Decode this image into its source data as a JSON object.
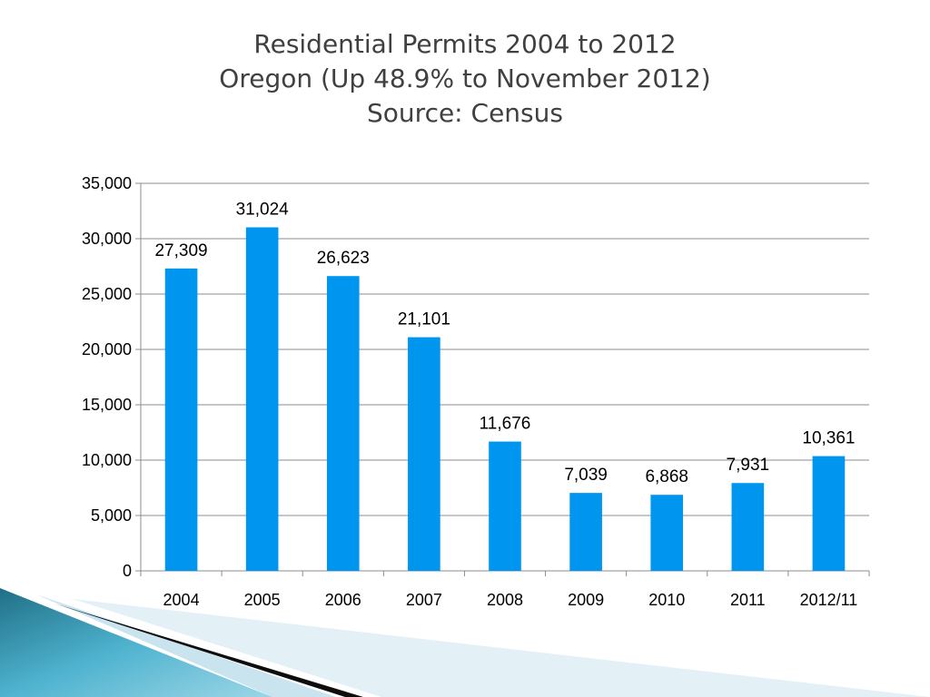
{
  "slide": {
    "title_lines": [
      "Residential Permits 2004 to 2012",
      "Oregon (Up 48.9% to November 2012)",
      "Source: Census"
    ]
  },
  "chart_data": {
    "type": "bar",
    "categories": [
      "2004",
      "2005",
      "2006",
      "2007",
      "2008",
      "2009",
      "2010",
      "2011",
      "2012/11"
    ],
    "values": [
      27309,
      31024,
      26623,
      21101,
      11676,
      7039,
      6868,
      7931,
      10361
    ],
    "value_labels": [
      "27,309",
      "31,024",
      "26,623",
      "21,101",
      "11,676",
      "7,039",
      "6,868",
      "7,931",
      "10,361"
    ],
    "yticks": [
      0,
      5000,
      10000,
      15000,
      20000,
      25000,
      30000,
      35000
    ],
    "ytick_labels": [
      "0",
      "5,000",
      "10,000",
      "15,000",
      "20,000",
      "25,000",
      "30,000",
      "35,000"
    ],
    "ylim": [
      0,
      35000
    ],
    "grid": true,
    "legend": "none",
    "bar_color": "#0096F0"
  }
}
